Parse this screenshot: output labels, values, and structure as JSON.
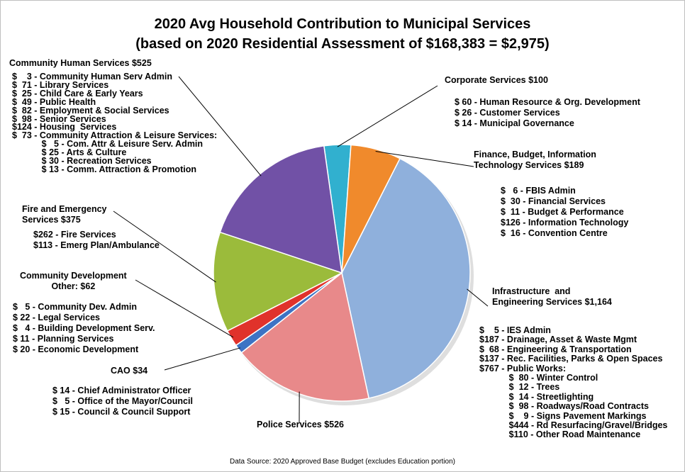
{
  "chart_data": {
    "type": "pie",
    "title": "2020 Avg Household Contribution to Municipal Services",
    "subtitle": "(based on 2020 Residential Assessment of $168,383 = $2,975)",
    "source_note": "Data Source:  2020 Approved Base Budget  (excludes Education portion)",
    "slices": [
      {
        "key": "corp",
        "value": 100,
        "color": "#31B0CF",
        "label": "Corporate Services $100",
        "details": [
          "$ 60 - Human Resource & Org. Development",
          "$ 26 - Customer Services",
          "$ 14 - Municipal Governance"
        ]
      },
      {
        "key": "fin",
        "value": 189,
        "color": "#F08A2C",
        "label": "Finance, Budget, Information Technology Services $189",
        "label_lines": [
          "Finance, Budget, Information",
          "Technology Services $189"
        ],
        "details": [
          "$   6 - FBIS Admin",
          "$  30 - Financial Services",
          "$  11 - Budget & Performance",
          "$126 - Information Technology",
          "$  16 - Convention Centre"
        ]
      },
      {
        "key": "infra",
        "value": 1164,
        "color": "#8FB0DC",
        "label": "Infrastructure and Engineering Services $1,164",
        "label_lines": [
          "Infrastructure  and",
          "Engineering Services $1,164"
        ],
        "details": [
          "$    5 - IES Admin",
          "$187 - Drainage, Asset & Waste Mgmt",
          "$  68 - Engineering & Transportation",
          "$137 - Rec. Facilities, Parks & Open Spaces",
          "$767 - Public Works:",
          "            $  80 - Winter Control",
          "            $  12 - Trees",
          "            $  14 - Streetlighting",
          "            $  98 - Roadways/Road Contracts",
          "            $    9 - Signs Pavement Markings",
          "            $444 - Rd Resurfacing/Gravel/Bridges",
          "            $110 - Other Road Maintenance"
        ]
      },
      {
        "key": "police",
        "value": 526,
        "color": "#E8898A",
        "label": "Police Services $526"
      },
      {
        "key": "cao",
        "value": 34,
        "color": "#3D73C4",
        "label": "CAO $34",
        "details": [
          "$ 14 - Chief Administrator Officer",
          "$   5 - Office of the Mayor/Council",
          "$ 15 - Council & Council Support"
        ]
      },
      {
        "key": "commdev",
        "value": 62,
        "color": "#E0322B",
        "label": "Community Development Other: $62",
        "label_lines": [
          "Community Development",
          "Other: $62"
        ],
        "details": [
          "$   5 - Community Dev. Admin",
          "$ 22 - Legal Services",
          "$   4 - Building Development Serv.",
          "$ 11 - Planning Services",
          "$ 20 - Economic Development"
        ]
      },
      {
        "key": "fire",
        "value": 375,
        "color": "#9BBB3B",
        "label": "Fire and Emergency Services $375",
        "label_lines": [
          "Fire and Emergency",
          "Services $375"
        ],
        "details": [
          "$262 - Fire Services",
          "$113 - Emerg Plan/Ambulance"
        ]
      },
      {
        "key": "chs",
        "value": 525,
        "color": "#7151A6",
        "label": "Community Human Services $525",
        "details": [
          "$    3 - Community Human Serv Admin",
          "$  71 - Library Services",
          "$  25 - Child Care & Early Years",
          "$  49 - Public Health",
          "$  82 - Employment & Social Services",
          "$  98 - Senior Services",
          "$124 - Housing  Services",
          "$  73 - Community Attraction & Leisure Services:",
          "            $   5 - Com. Attr & Leisure Serv. Admin",
          "            $ 25 - Arts & Culture",
          "            $ 30 - Recreation Services",
          "            $ 13 - Comm. Attraction & Promotion"
        ]
      }
    ]
  }
}
